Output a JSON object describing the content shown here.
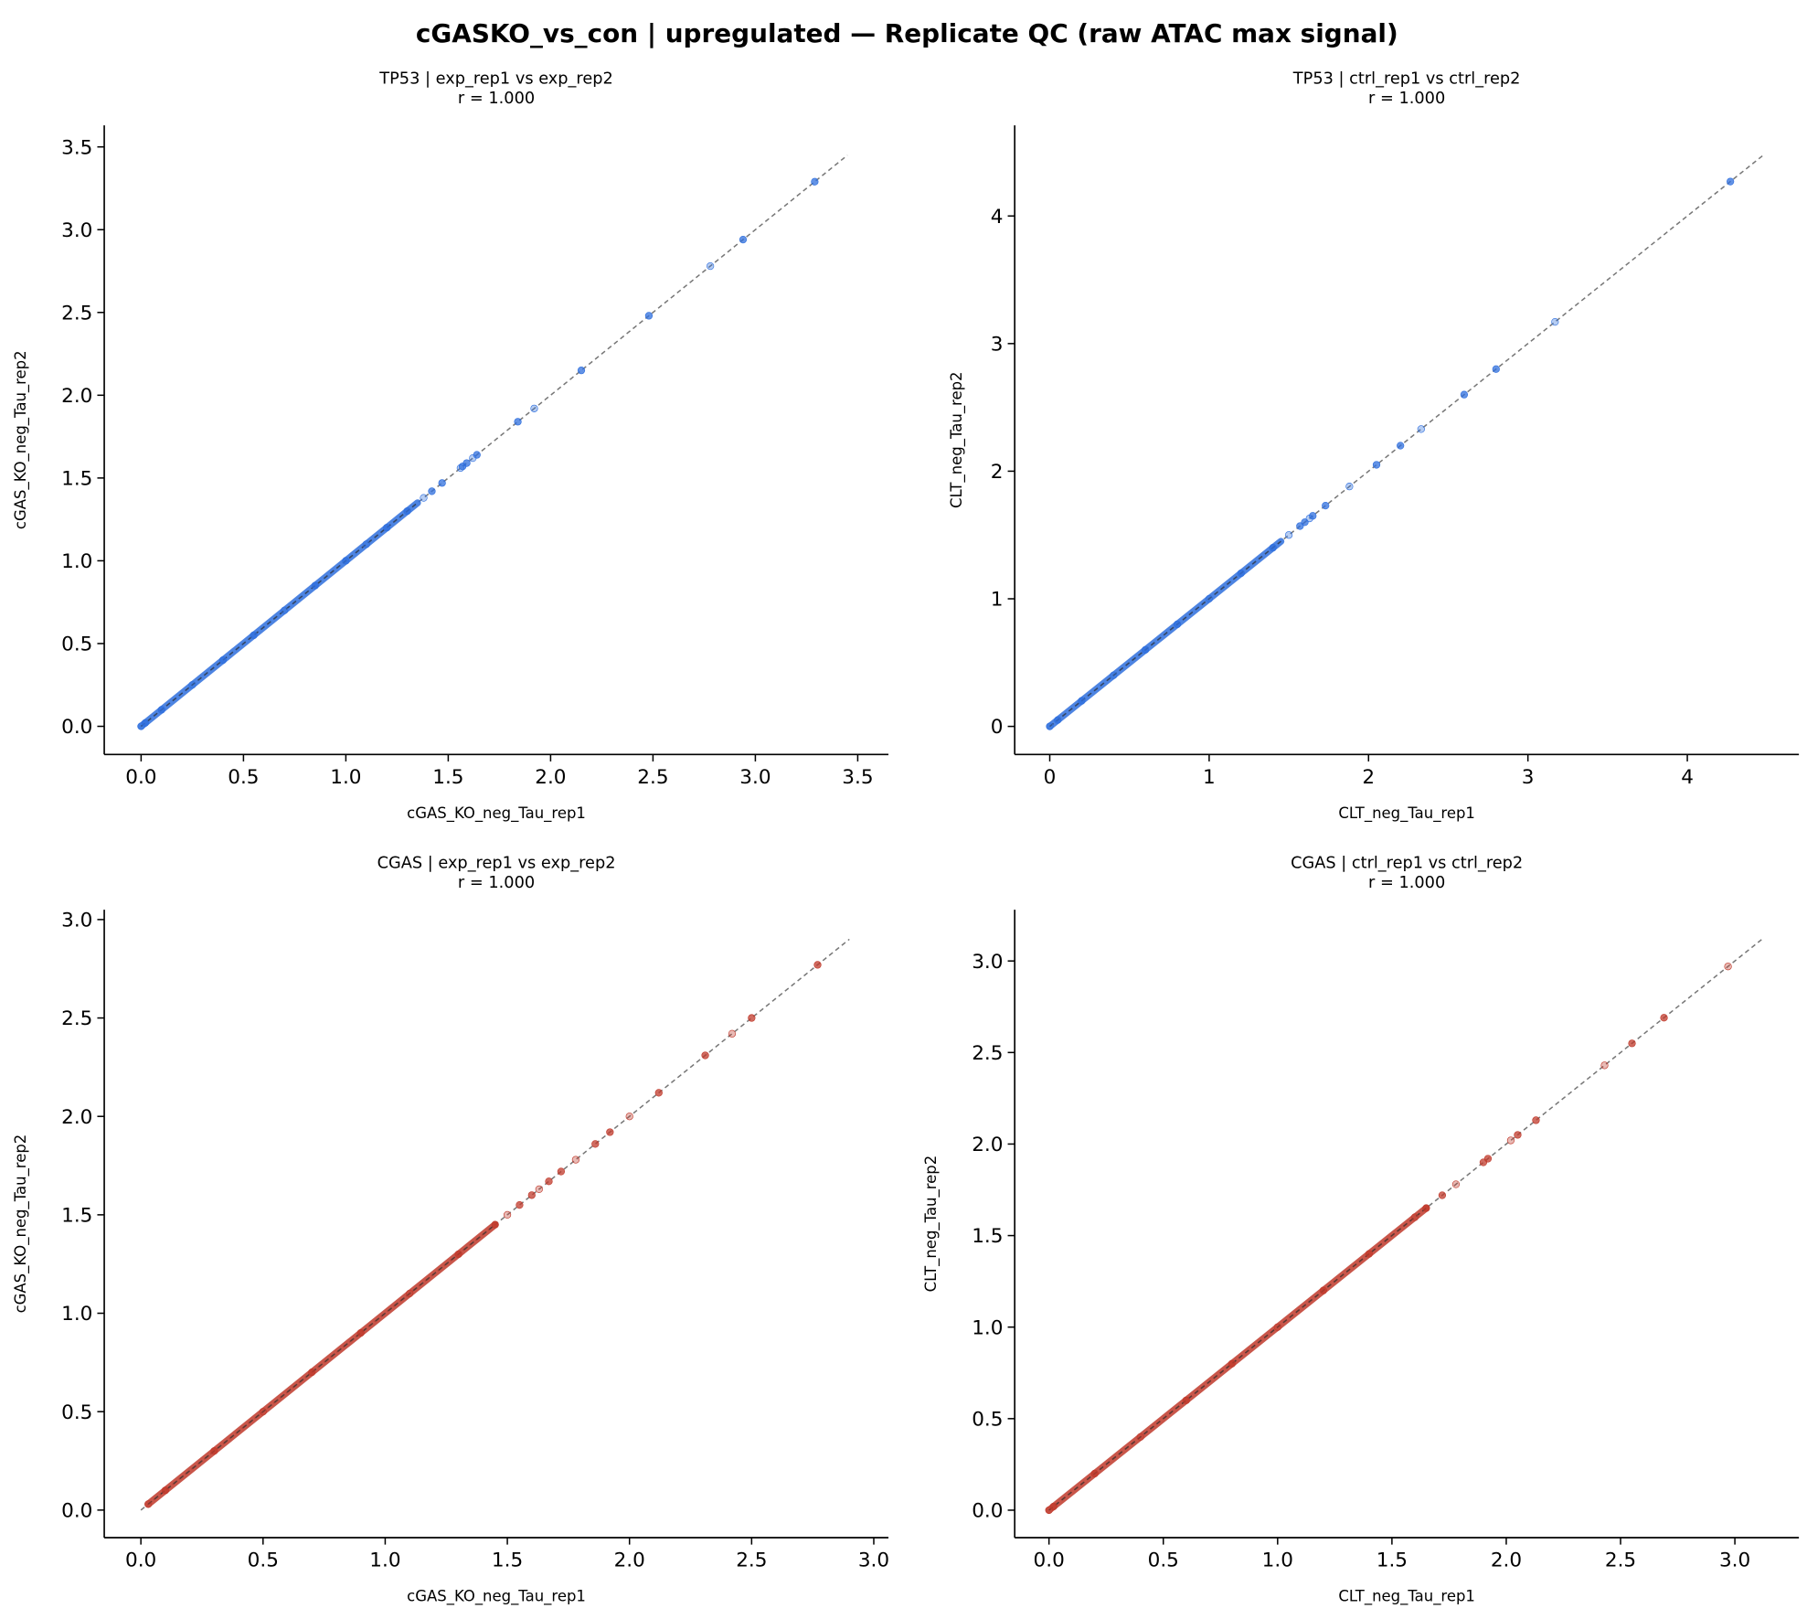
{
  "chart_data": {
    "title": "cGASKO_vs_con | upregulated — Replicate QC (raw ATAC max signal)",
    "panels": [
      {
        "type": "scatter",
        "title": "TP53 | exp_rep1 vs exp_rep2",
        "subtitle": "r = 1.000",
        "xlabel": "cGAS_KO_neg_Tau_rep1",
        "ylabel": "cGAS_KO_neg_Tau_rep2",
        "xlim": [
          -0.18,
          3.65
        ],
        "ylim": [
          -0.17,
          3.63
        ],
        "xticks": [
          0,
          0.5,
          1,
          1.5,
          2,
          2.5,
          3,
          3.5
        ],
        "xtick_labels": [
          "0.0",
          "0.5",
          "1.0",
          "1.5",
          "2.0",
          "2.5",
          "3.0",
          "3.5"
        ],
        "yticks": [
          0,
          0.5,
          1,
          1.5,
          2,
          2.5,
          3,
          3.5
        ],
        "ytick_labels": [
          "0.0",
          "0.5",
          "1.0",
          "1.5",
          "2.0",
          "2.5",
          "3.0",
          "3.5"
        ],
        "color": "#2f6fde",
        "diagonal": [
          0,
          3.45
        ],
        "dense_range": [
          0.0,
          1.35
        ],
        "points": [
          [
            0.0,
            0.0
          ],
          [
            0.02,
            0.02
          ],
          [
            0.1,
            0.1
          ],
          [
            0.25,
            0.25
          ],
          [
            0.4,
            0.4
          ],
          [
            0.55,
            0.55
          ],
          [
            0.7,
            0.7
          ],
          [
            0.85,
            0.85
          ],
          [
            1.0,
            1.0
          ],
          [
            1.1,
            1.1
          ],
          [
            1.2,
            1.2
          ],
          [
            1.3,
            1.3
          ],
          [
            1.38,
            1.38
          ],
          [
            1.42,
            1.42
          ],
          [
            1.47,
            1.47
          ],
          [
            1.56,
            1.56
          ],
          [
            1.57,
            1.57
          ],
          [
            1.59,
            1.59
          ],
          [
            1.62,
            1.62
          ],
          [
            1.64,
            1.64
          ],
          [
            1.84,
            1.84
          ],
          [
            1.92,
            1.92
          ],
          [
            2.15,
            2.15
          ],
          [
            2.48,
            2.48
          ],
          [
            2.78,
            2.78
          ],
          [
            2.94,
            2.94
          ],
          [
            3.29,
            3.29
          ]
        ]
      },
      {
        "type": "scatter",
        "title": "TP53 | ctrl_rep1 vs ctrl_rep2",
        "subtitle": "r = 1.000",
        "xlabel": "CLT_neg_Tau_rep1",
        "ylabel": "CLT_neg_Tau_rep2",
        "xlim": [
          -0.22,
          4.7
        ],
        "ylim": [
          -0.22,
          4.71
        ],
        "xticks": [
          0,
          1,
          2,
          3,
          4
        ],
        "xtick_labels": [
          "0",
          "1",
          "2",
          "3",
          "4"
        ],
        "yticks": [
          0,
          1,
          2,
          3,
          4
        ],
        "ytick_labels": [
          "0",
          "1",
          "2",
          "3",
          "4"
        ],
        "color": "#2f6fde",
        "diagonal": [
          0,
          4.48
        ],
        "dense_range": [
          0.0,
          1.45
        ],
        "points": [
          [
            0.0,
            0.0
          ],
          [
            0.05,
            0.05
          ],
          [
            0.2,
            0.2
          ],
          [
            0.4,
            0.4
          ],
          [
            0.6,
            0.6
          ],
          [
            0.8,
            0.8
          ],
          [
            1.0,
            1.0
          ],
          [
            1.2,
            1.2
          ],
          [
            1.4,
            1.4
          ],
          [
            1.5,
            1.5
          ],
          [
            1.57,
            1.57
          ],
          [
            1.6,
            1.6
          ],
          [
            1.63,
            1.63
          ],
          [
            1.65,
            1.65
          ],
          [
            1.73,
            1.73
          ],
          [
            1.88,
            1.88
          ],
          [
            2.05,
            2.05
          ],
          [
            2.2,
            2.2
          ],
          [
            2.33,
            2.33
          ],
          [
            2.6,
            2.6
          ],
          [
            2.8,
            2.8
          ],
          [
            3.17,
            3.17
          ],
          [
            4.27,
            4.27
          ]
        ]
      },
      {
        "type": "scatter",
        "title": "CGAS | exp_rep1 vs exp_rep2",
        "subtitle": "r = 1.000",
        "xlabel": "cGAS_KO_neg_Tau_rep1",
        "ylabel": "cGAS_KO_neg_Tau_rep2",
        "xlim": [
          -0.15,
          3.06
        ],
        "ylim": [
          -0.14,
          3.05
        ],
        "xticks": [
          0,
          0.5,
          1,
          1.5,
          2,
          2.5,
          3
        ],
        "xtick_labels": [
          "0.0",
          "0.5",
          "1.0",
          "1.5",
          "2.0",
          "2.5",
          "3.0"
        ],
        "yticks": [
          0,
          0.5,
          1,
          1.5,
          2,
          2.5,
          3
        ],
        "ytick_labels": [
          "0.0",
          "0.5",
          "1.0",
          "1.5",
          "2.0",
          "2.5",
          "3.0"
        ],
        "color": "#c0392b",
        "diagonal": [
          0,
          2.9
        ],
        "dense_range": [
          0.03,
          1.45
        ],
        "points": [
          [
            0.03,
            0.03
          ],
          [
            0.1,
            0.1
          ],
          [
            0.3,
            0.3
          ],
          [
            0.5,
            0.5
          ],
          [
            0.7,
            0.7
          ],
          [
            0.9,
            0.9
          ],
          [
            1.1,
            1.1
          ],
          [
            1.3,
            1.3
          ],
          [
            1.45,
            1.45
          ],
          [
            1.5,
            1.5
          ],
          [
            1.55,
            1.55
          ],
          [
            1.6,
            1.6
          ],
          [
            1.63,
            1.63
          ],
          [
            1.67,
            1.67
          ],
          [
            1.72,
            1.72
          ],
          [
            1.78,
            1.78
          ],
          [
            1.86,
            1.86
          ],
          [
            1.92,
            1.92
          ],
          [
            2.0,
            2.0
          ],
          [
            2.12,
            2.12
          ],
          [
            2.31,
            2.31
          ],
          [
            2.42,
            2.42
          ],
          [
            2.5,
            2.5
          ],
          [
            2.77,
            2.77
          ]
        ]
      },
      {
        "type": "scatter",
        "title": "CGAS | ctrl_rep1 vs ctrl_rep2",
        "subtitle": "r = 1.000",
        "xlabel": "CLT_neg_Tau_rep1",
        "ylabel": "CLT_neg_Tau_rep2",
        "xlim": [
          -0.15,
          3.28
        ],
        "ylim": [
          -0.15,
          3.28
        ],
        "xticks": [
          0,
          0.5,
          1,
          1.5,
          2,
          2.5,
          3
        ],
        "xtick_labels": [
          "0.0",
          "0.5",
          "1.0",
          "1.5",
          "2.0",
          "2.5",
          "3.0"
        ],
        "yticks": [
          0,
          0.5,
          1,
          1.5,
          2,
          2.5,
          3
        ],
        "ytick_labels": [
          "0.0",
          "0.5",
          "1.0",
          "1.5",
          "2.0",
          "2.5",
          "3.0"
        ],
        "color": "#c0392b",
        "diagonal": [
          0,
          3.12
        ],
        "dense_range": [
          0.0,
          1.65
        ],
        "points": [
          [
            0.0,
            0.0
          ],
          [
            0.02,
            0.02
          ],
          [
            0.2,
            0.2
          ],
          [
            0.4,
            0.4
          ],
          [
            0.6,
            0.6
          ],
          [
            0.8,
            0.8
          ],
          [
            1.0,
            1.0
          ],
          [
            1.2,
            1.2
          ],
          [
            1.4,
            1.4
          ],
          [
            1.6,
            1.6
          ],
          [
            1.65,
            1.65
          ],
          [
            1.72,
            1.72
          ],
          [
            1.78,
            1.78
          ],
          [
            1.9,
            1.9
          ],
          [
            1.92,
            1.92
          ],
          [
            2.02,
            2.02
          ],
          [
            2.05,
            2.05
          ],
          [
            2.13,
            2.13
          ],
          [
            2.43,
            2.43
          ],
          [
            2.55,
            2.55
          ],
          [
            2.69,
            2.69
          ],
          [
            2.97,
            2.97
          ]
        ]
      }
    ]
  }
}
